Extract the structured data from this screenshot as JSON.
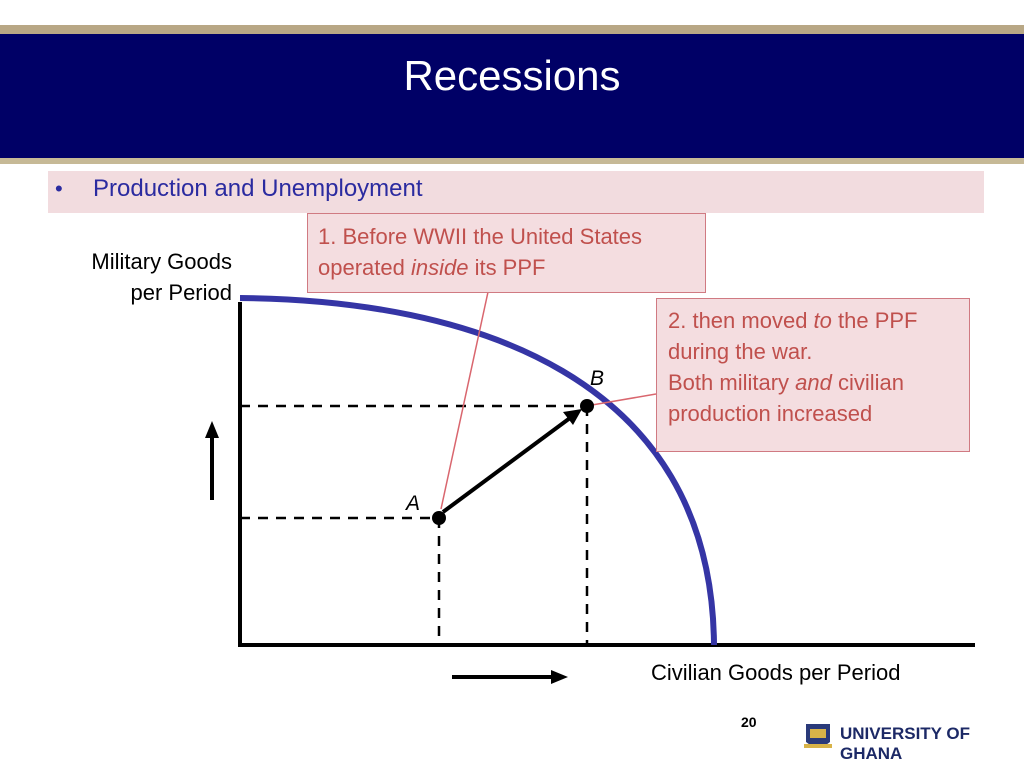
{
  "slide": {
    "title": "Recessions",
    "bullet": "Production and Unemployment",
    "page_number": "20",
    "institution": "UNIVERSITY OF GHANA"
  },
  "diagram": {
    "y_axis_label_line1": "Military Goods",
    "y_axis_label_line2": "per Period",
    "x_axis_label": "Civilian Goods per Period",
    "point_a_label": "A",
    "point_b_label": "B",
    "callout_1": {
      "line1": "1. Before WWII the United States",
      "line2_before": "operated ",
      "line2_em": "inside",
      "line2_after": " its PPF"
    },
    "callout_2": {
      "line1_before": "2. then moved ",
      "line1_em": "to",
      "line1_after": " the PPF",
      "line2": "during the war.",
      "line3_before": "Both military ",
      "line3_em": "and",
      "line3_after": " civilian",
      "line4": "production increased"
    }
  },
  "colors": {
    "title_bar": "#000066",
    "ppf_curve": "#3535a5",
    "callout_text": "#c0504d",
    "bullet_text": "#2b2ba0"
  }
}
